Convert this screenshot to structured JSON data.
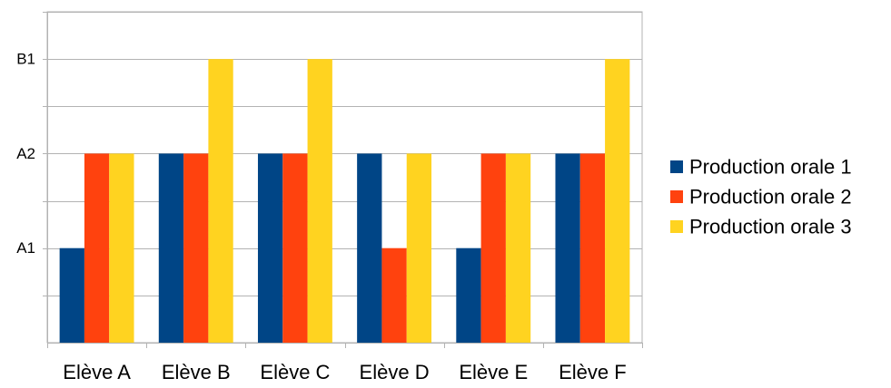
{
  "chart_data": {
    "type": "bar",
    "categories": [
      "Elève A",
      "Elève B",
      "Elève C",
      "Elève D",
      "Elève E",
      "Elève F"
    ],
    "y_tick_labels": [
      "A1",
      "A2",
      "B1"
    ],
    "y_tick_values": [
      1,
      2,
      3
    ],
    "ylim": [
      0,
      3.5
    ],
    "grid": true,
    "legend_position": "right",
    "series": [
      {
        "name": "Production orale 1",
        "color": "#004586",
        "values": [
          1,
          2,
          2,
          2,
          1,
          2
        ]
      },
      {
        "name": "Production orale 2",
        "color": "#ff420e",
        "values": [
          2,
          2,
          2,
          1,
          2,
          2
        ]
      },
      {
        "name": "Production orale 3",
        "color": "#ffd320",
        "values": [
          2,
          3,
          3,
          2,
          2,
          3
        ]
      }
    ],
    "title": "",
    "xlabel": "",
    "ylabel": ""
  }
}
